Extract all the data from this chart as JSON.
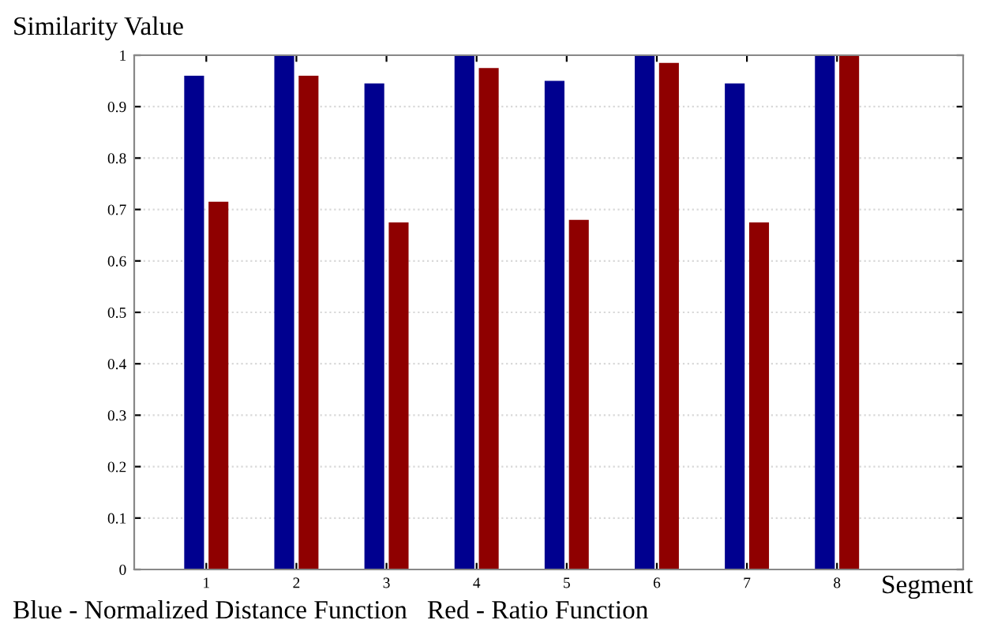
{
  "chart_data": {
    "type": "bar",
    "ylabel": "Similarity Value",
    "xlabel": "Segment",
    "categories": [
      "1",
      "2",
      "3",
      "4",
      "5",
      "6",
      "7",
      "8"
    ],
    "series": [
      {
        "color": "#00008f",
        "values": [
          0.96,
          1,
          0.945,
          1,
          0.95,
          1,
          0.945,
          1
        ]
      },
      {
        "color": "#8f0000",
        "values": [
          0.715,
          0.96,
          0.675,
          0.975,
          0.68,
          0.985,
          0.675,
          1
        ]
      }
    ],
    "ylim": [
      0,
      1
    ],
    "yticks": [
      0,
      0.1,
      0.2,
      0.3,
      0.4,
      0.5,
      0.6,
      0.7,
      0.8,
      0.9,
      1
    ],
    "grid": "y",
    "annotations": [
      "Blue - Normalized Distance Function   Red - Ratio Function"
    ]
  }
}
